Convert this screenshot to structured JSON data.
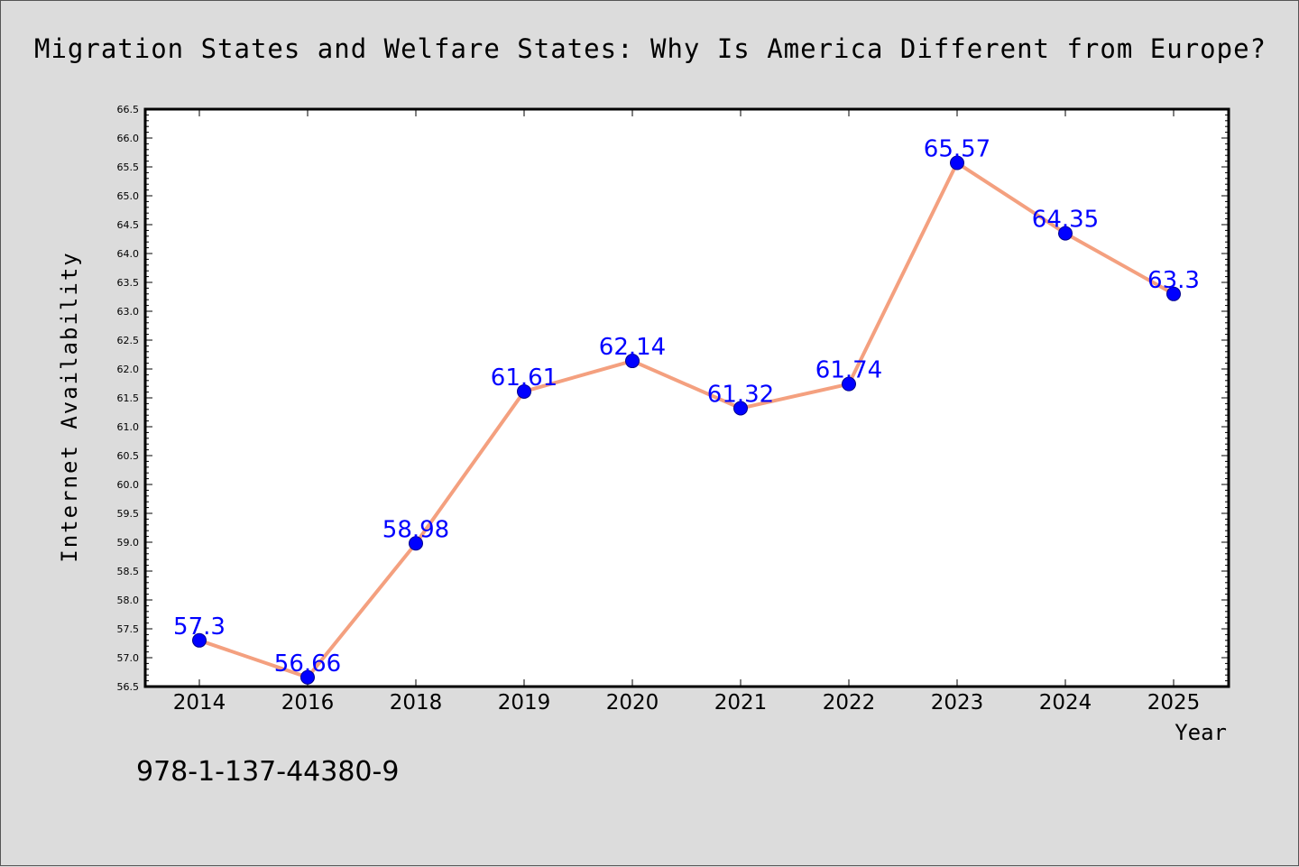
{
  "chart_data": {
    "type": "line",
    "title": "Migration States and Welfare States: Why Is America Different from Europe?",
    "xlabel": "Year",
    "ylabel": "Internet Availability",
    "categories": [
      "2014",
      "2016",
      "2018",
      "2019",
      "2020",
      "2021",
      "2022",
      "2023",
      "2024",
      "2025"
    ],
    "series": [
      {
        "values": [
          57.3,
          56.66,
          58.98,
          61.61,
          62.14,
          61.32,
          61.74,
          65.57,
          64.35,
          63.3
        ],
        "data_labels": [
          "57.3",
          "56.66",
          "58.98",
          "61.61",
          "62.14",
          "61.32",
          "61.74",
          "65.57",
          "64.35",
          "63.3"
        ]
      }
    ],
    "ylim": [
      56.5,
      66.5
    ],
    "yticks": [
      "56.5",
      "57.0",
      "57.5",
      "58.0",
      "58.5",
      "59.0",
      "59.5",
      "60.0",
      "60.5",
      "61.0",
      "61.5",
      "62.0",
      "62.5",
      "63.0",
      "63.5",
      "64.0",
      "64.5",
      "65.0",
      "65.5",
      "66.0",
      "66.5"
    ],
    "grid": false,
    "legend": "none",
    "annotation": "978-1-137-44380-9",
    "colors": {
      "background": "#dcdcdc",
      "plot_background": "#ffffff",
      "line": "#f4a07f",
      "marker": "#0000ff",
      "data_label": "#0000ff",
      "axis": "#000000"
    }
  }
}
